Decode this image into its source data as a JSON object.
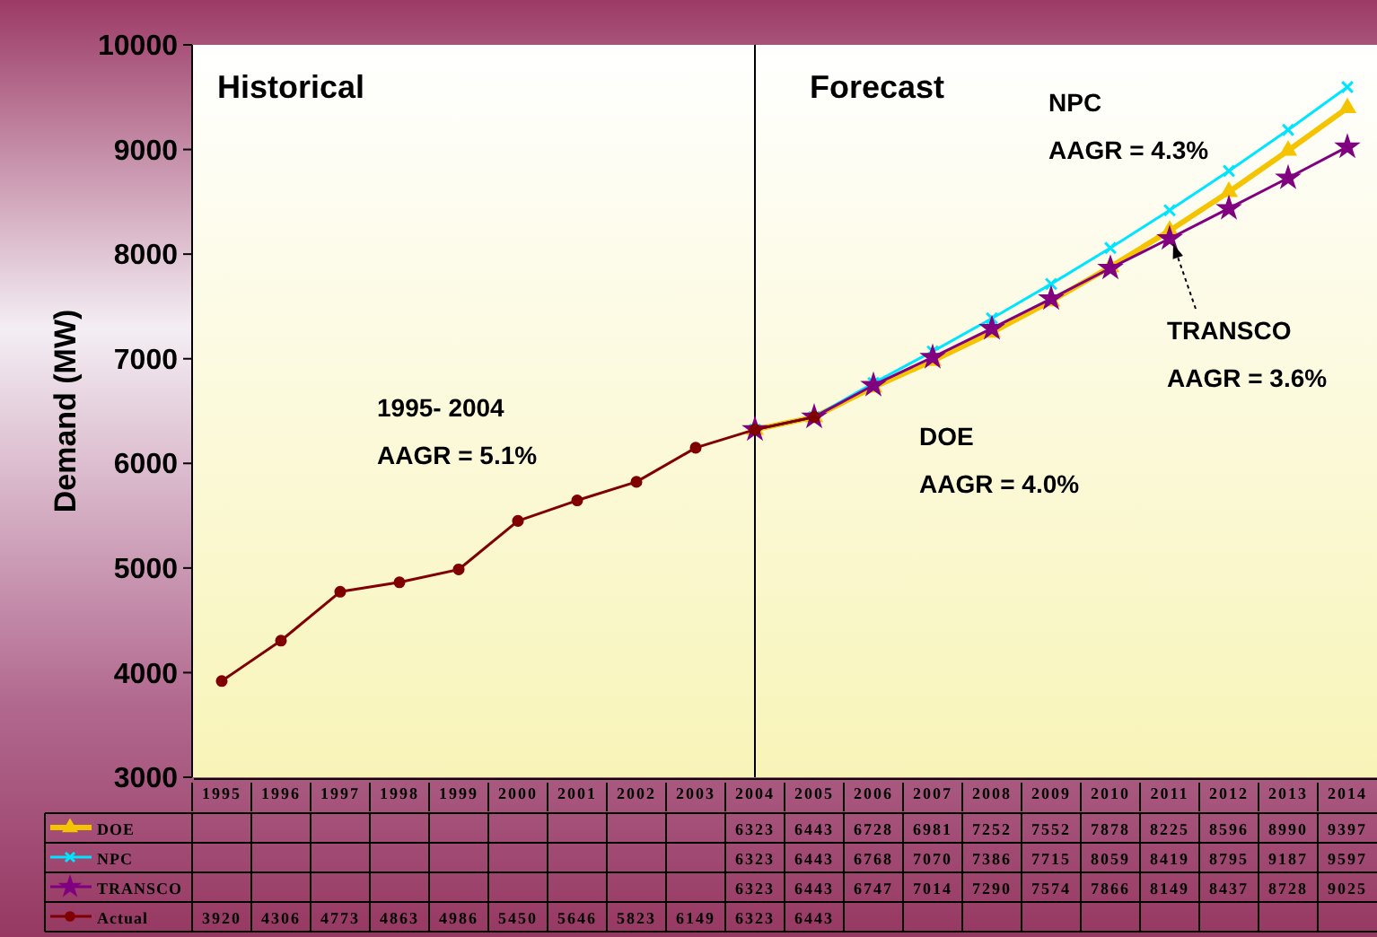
{
  "chart_data": {
    "type": "line",
    "ylabel": "Demand (MW)",
    "categories": [
      "1995",
      "1996",
      "1997",
      "1998",
      "1999",
      "2000",
      "2001",
      "2002",
      "2003",
      "2004",
      "2005",
      "2006",
      "2007",
      "2008",
      "2009",
      "2010",
      "2011",
      "2012",
      "2013",
      "2014"
    ],
    "series": [
      {
        "name": "DOE",
        "color": "#f5c400",
        "marker": "triangle",
        "values": [
          null,
          null,
          null,
          null,
          null,
          null,
          null,
          null,
          null,
          6323,
          6443,
          6728,
          6981,
          7252,
          7552,
          7878,
          8225,
          8596,
          8990,
          9397
        ]
      },
      {
        "name": "NPC",
        "color": "#00e5ff",
        "marker": "cross",
        "values": [
          null,
          null,
          null,
          null,
          null,
          null,
          null,
          null,
          null,
          6323,
          6443,
          6768,
          7070,
          7386,
          7715,
          8059,
          8419,
          8795,
          9187,
          9597
        ]
      },
      {
        "name": "TRANSCO",
        "color": "#800080",
        "marker": "star",
        "values": [
          null,
          null,
          null,
          null,
          null,
          null,
          null,
          null,
          null,
          6323,
          6443,
          6747,
          7014,
          7290,
          7574,
          7866,
          8149,
          8437,
          8728,
          9025
        ]
      },
      {
        "name": "Actual",
        "color": "#800000",
        "marker": "circle",
        "values": [
          3920,
          4306,
          4773,
          4863,
          4986,
          5450,
          5646,
          5823,
          6149,
          6323,
          6443,
          null,
          null,
          null,
          null,
          null,
          null,
          null,
          null,
          null
        ]
      }
    ],
    "ylim": [
      3000,
      10000
    ],
    "yticks": [
      3000,
      4000,
      5000,
      6000,
      7000,
      8000,
      9000,
      10000
    ],
    "grid": false,
    "legend": "bottom left",
    "data_labels": true,
    "line_style": "solid",
    "ref_lines": [
      {
        "axis": "x",
        "value": "2004",
        "color": "#000000"
      }
    ],
    "annotations": [
      "Historical",
      "Forecast",
      "NPC\nAAGR = 4.3%",
      {
        "text": "TRANSCO\nAAGR = 3.6%",
        "x": "2011",
        "y": 8149
      },
      "DOE\nAAGR = 4.0%",
      "1995- 2004\nAAGR = 5.1%"
    ]
  }
}
